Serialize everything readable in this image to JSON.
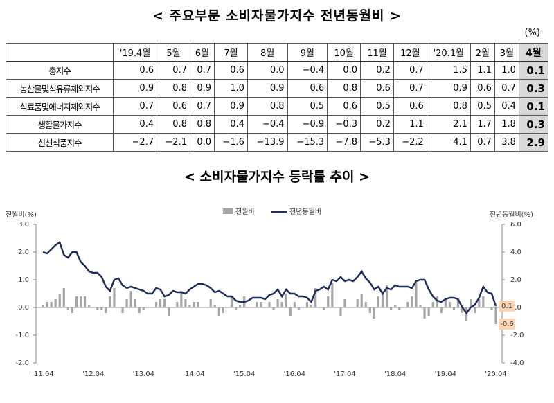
{
  "table": {
    "title": "< 주요부문 소비자물가지수 전년동월비 >",
    "unit": "(%)",
    "header": [
      "'19.4월",
      "5월",
      "6월",
      "7월",
      "8월",
      "9월",
      "10월",
      "11월",
      "12월",
      "'20.1월",
      "2월",
      "3월",
      "4월"
    ],
    "rows": [
      {
        "label": "총지수",
        "values": [
          "0.6",
          "0.7",
          "0.7",
          "0.6",
          "0.0",
          "−0.4",
          "0.0",
          "0.2",
          "0.7",
          "1.5",
          "1.1",
          "1.0",
          "0.1"
        ]
      },
      {
        "label": "농산물및석유류제외지수",
        "values": [
          "0.9",
          "0.8",
          "0.9",
          "1.0",
          "0.9",
          "0.6",
          "0.8",
          "0.6",
          "0.7",
          "0.9",
          "0.6",
          "0.7",
          "0.3"
        ]
      },
      {
        "label": "식료품및에너지제외지수",
        "values": [
          "0.7",
          "0.6",
          "0.7",
          "0.9",
          "0.8",
          "0.5",
          "0.6",
          "0.5",
          "0.6",
          "0.8",
          "0.5",
          "0.4",
          "0.1"
        ]
      },
      {
        "label": "생활물가지수",
        "values": [
          "0.4",
          "0.8",
          "0.8",
          "0.4",
          "−0.4",
          "−0.9",
          "−0.3",
          "0.2",
          "1.1",
          "2.1",
          "1.7",
          "1.8",
          "0.3"
        ]
      },
      {
        "label": "신선식품지수",
        "values": [
          "−2.7",
          "−2.1",
          "0.0",
          "−1.6",
          "−13.9",
          "−15.3",
          "−7.8",
          "−5.3",
          "−2.2",
          "4.1",
          "0.7",
          "3.8",
          "2.9"
        ]
      }
    ]
  },
  "chart_data": {
    "type": "bar_line",
    "title": "< 소비자물가지수 등락률 추이 >",
    "y_label": "전월비(%)",
    "y2_label": "전년동월비(%)",
    "categories": [
      "'11.04",
      null,
      null,
      null,
      null,
      null,
      null,
      null,
      null,
      null,
      null,
      null,
      "'12.04",
      null,
      null,
      null,
      null,
      null,
      null,
      null,
      null,
      null,
      null,
      null,
      "'13.04",
      null,
      null,
      null,
      null,
      null,
      null,
      null,
      null,
      null,
      null,
      null,
      "'14.04",
      null,
      null,
      null,
      null,
      null,
      null,
      null,
      null,
      null,
      null,
      null,
      "'15.04",
      null,
      null,
      null,
      null,
      null,
      null,
      null,
      null,
      null,
      null,
      null,
      "'16.04",
      null,
      null,
      null,
      null,
      null,
      null,
      null,
      null,
      null,
      null,
      null,
      "'17.04",
      null,
      null,
      null,
      null,
      null,
      null,
      null,
      null,
      null,
      null,
      null,
      "'18.04",
      null,
      null,
      null,
      null,
      null,
      null,
      null,
      null,
      null,
      null,
      null,
      "'19.04",
      null,
      null,
      null,
      null,
      null,
      null,
      null,
      null,
      null,
      null,
      null,
      "'20.04"
    ],
    "series": [
      {
        "name": "전월비",
        "color": "#a6a6a6",
        "axis": "y",
        "values": [
          0.1,
          0.2,
          0.2,
          0.3,
          0.5,
          0.7,
          -0.1,
          -0.2,
          0.4,
          0.4,
          0.4,
          0.1,
          0.0,
          -0.1,
          -0.1,
          -0.2,
          0.4,
          0.7,
          0.0,
          -0.2,
          0.3,
          0.6,
          0.3,
          -0.2,
          -0.1,
          0.0,
          0.0,
          0.2,
          0.3,
          0.3,
          -0.3,
          0.0,
          0.2,
          0.6,
          0.3,
          0.1,
          0.2,
          0.2,
          0.0,
          0.0,
          0.3,
          0.1,
          -0.3,
          -0.2,
          0.0,
          0.4,
          -0.1,
          0.1,
          0.4,
          0.0,
          0.0,
          0.2,
          0.2,
          0.0,
          0.2,
          -0.1,
          0.3,
          0.2,
          0.5,
          -0.3,
          0.2,
          -0.1,
          0.0,
          0.2,
          0.1,
          0.7,
          0.0,
          -0.1,
          0.4,
          0.9,
          0.0,
          -0.3,
          0.3,
          0.0,
          0.0,
          0.3,
          0.5,
          0.2,
          -0.2,
          -0.4,
          0.4,
          0.6,
          0.8,
          -0.1,
          0.1,
          -0.1,
          0.0,
          0.2,
          0.4,
          0.9,
          0.1,
          -0.4,
          -0.3,
          0.2,
          0.4,
          -0.2,
          0.3,
          0.2,
          -0.1,
          0.3,
          -0.2,
          -0.5,
          0.3,
          -0.2,
          0.3,
          0.4,
          0.0,
          -0.1,
          -0.6
        ]
      },
      {
        "name": "전년동월비",
        "color": "#1f2d5c",
        "axis": "y2",
        "values": [
          4.0,
          3.9,
          4.2,
          4.5,
          4.7,
          3.8,
          3.6,
          4.0,
          4.0,
          3.3,
          3.0,
          2.6,
          2.5,
          2.5,
          2.2,
          1.5,
          1.2,
          2.0,
          2.1,
          1.6,
          1.4,
          1.5,
          1.4,
          1.3,
          1.2,
          1.0,
          1.0,
          1.4,
          1.3,
          0.8,
          0.9,
          1.2,
          1.1,
          1.1,
          1.0,
          1.3,
          1.5,
          1.7,
          1.7,
          1.6,
          1.4,
          1.1,
          1.2,
          1.0,
          0.8,
          0.8,
          0.5,
          0.4,
          0.4,
          0.5,
          0.7,
          0.7,
          0.7,
          0.6,
          0.9,
          1.0,
          1.3,
          0.8,
          1.3,
          1.0,
          1.0,
          0.8,
          0.8,
          0.7,
          0.4,
          1.2,
          1.3,
          1.5,
          1.3,
          2.0,
          1.9,
          2.2,
          1.9,
          2.0,
          1.9,
          2.2,
          2.6,
          2.1,
          1.8,
          1.3,
          1.5,
          1.0,
          1.4,
          1.3,
          1.6,
          1.5,
          1.5,
          1.5,
          1.4,
          1.9,
          2.0,
          2.0,
          1.3,
          0.8,
          0.5,
          0.4,
          0.6,
          0.7,
          0.7,
          0.6,
          0.0,
          -0.4,
          0.0,
          0.2,
          0.7,
          1.5,
          1.1,
          1.0,
          0.1
        ]
      }
    ],
    "ylim": [
      -2.0,
      3.0
    ],
    "yticks": [
      {
        "value": -2,
        "label": "-2.0"
      },
      {
        "value": -1,
        "label": "-1.0"
      },
      {
        "value": 0,
        "label": "0.0"
      },
      {
        "value": 1,
        "label": "1.0"
      },
      {
        "value": 2,
        "label": "2.0"
      },
      {
        "value": 3,
        "label": "3.0"
      }
    ],
    "y2lim": [
      -4.0,
      6.0
    ],
    "y2ticks": [
      {
        "value": -4,
        "label": "-4.0"
      },
      {
        "value": -2,
        "label": "-2.0"
      },
      {
        "value": 0,
        "label": "0.0"
      },
      {
        "value": 2,
        "label": "2.0"
      },
      {
        "value": 4,
        "label": "4.0"
      },
      {
        "value": 6,
        "label": "6.0"
      }
    ],
    "annotations": [
      "0.1",
      "-0.6"
    ]
  }
}
